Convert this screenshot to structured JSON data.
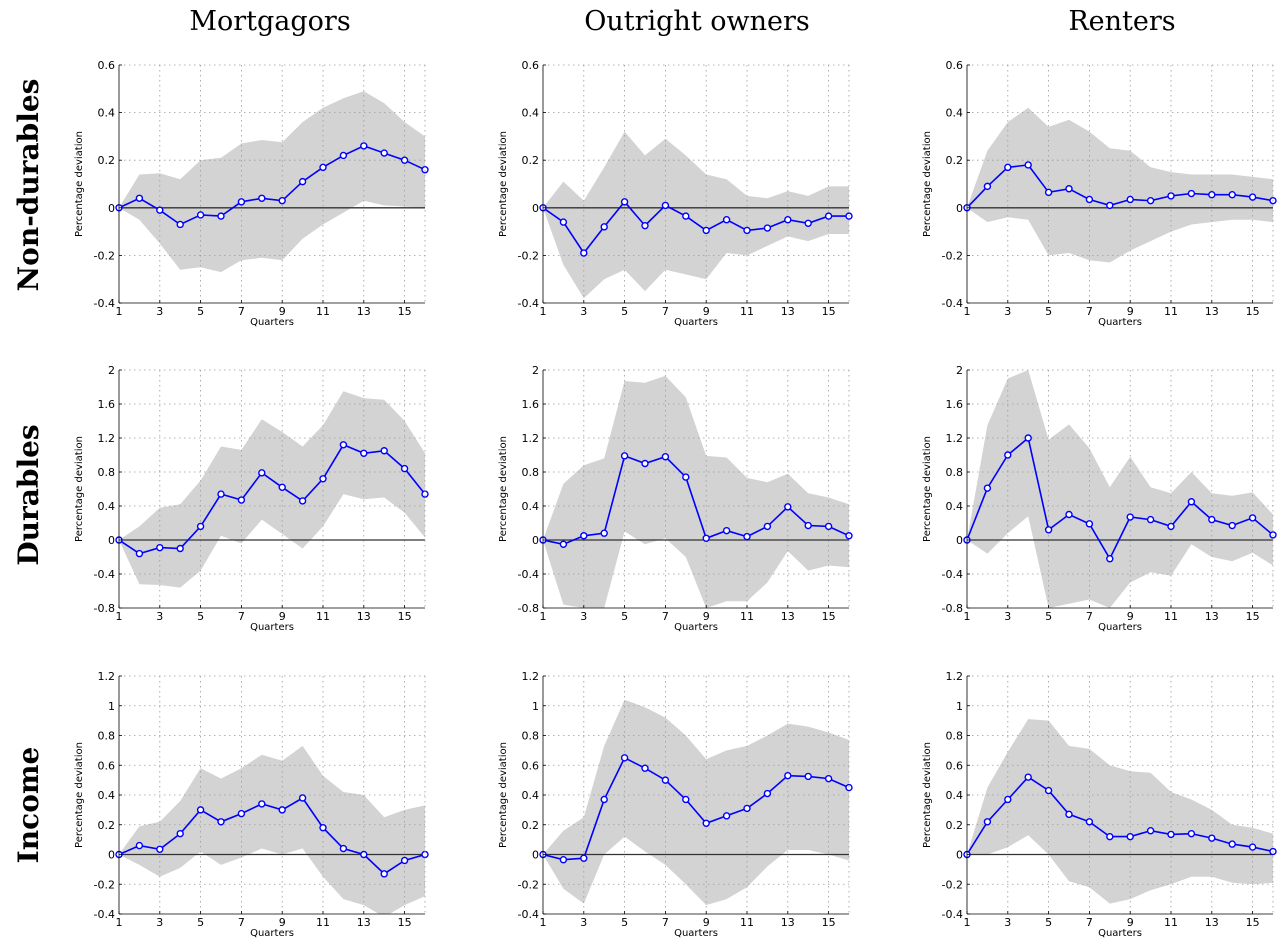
{
  "figure": {
    "col_titles": [
      "Mortgagors",
      "Outright owners",
      "Renters"
    ],
    "row_titles": [
      "Non-durables",
      "Durables",
      "Income"
    ]
  },
  "style": {
    "line_color": "#0000ff",
    "band_color": "#d3d3d3",
    "zero_line_color": "#333333"
  },
  "chart_data": [
    {
      "type": "line",
      "row": 0,
      "col": 0,
      "xlabel": "Quarters",
      "ylabel": "Percentage deviation",
      "xlim": [
        1,
        16
      ],
      "ylim": [
        -0.4,
        0.6
      ],
      "xticks": [
        1,
        3,
        5,
        7,
        9,
        11,
        13,
        15
      ],
      "yticks": [
        -0.4,
        -0.2,
        0,
        0.2,
        0.4,
        0.6
      ],
      "grid": true,
      "x": [
        1,
        2,
        3,
        4,
        5,
        6,
        7,
        8,
        9,
        10,
        11,
        12,
        13,
        14,
        15,
        16
      ],
      "series": [
        {
          "values": [
            0,
            0.04,
            -0.01,
            -0.07,
            -0.03,
            -0.035,
            0.025,
            0.04,
            0.03,
            0.11,
            0.17,
            0.22,
            0.26,
            0.23,
            0.2,
            0.16
          ]
        }
      ],
      "band_lower": [
        0,
        -0.05,
        -0.15,
        -0.26,
        -0.25,
        -0.27,
        -0.22,
        -0.21,
        -0.22,
        -0.13,
        -0.07,
        -0.02,
        0.03,
        0.01,
        0.005,
        0
      ],
      "band_upper": [
        0,
        0.14,
        0.145,
        0.12,
        0.2,
        0.21,
        0.27,
        0.285,
        0.275,
        0.36,
        0.42,
        0.46,
        0.49,
        0.44,
        0.36,
        0.3
      ]
    },
    {
      "type": "line",
      "row": 0,
      "col": 1,
      "xlabel": "Quarters",
      "ylabel": "Percentage deviation",
      "xlim": [
        1,
        16
      ],
      "ylim": [
        -0.4,
        0.6
      ],
      "xticks": [
        1,
        3,
        5,
        7,
        9,
        11,
        13,
        15
      ],
      "yticks": [
        -0.4,
        -0.2,
        0,
        0.2,
        0.4,
        0.6
      ],
      "grid": true,
      "x": [
        1,
        2,
        3,
        4,
        5,
        6,
        7,
        8,
        9,
        10,
        11,
        12,
        13,
        14,
        15,
        16
      ],
      "series": [
        {
          "values": [
            0,
            -0.06,
            -0.19,
            -0.08,
            0.025,
            -0.075,
            0.01,
            -0.035,
            -0.095,
            -0.05,
            -0.095,
            -0.085,
            -0.05,
            -0.065,
            -0.035,
            -0.035
          ]
        }
      ],
      "band_lower": [
        0,
        -0.24,
        -0.38,
        -0.3,
        -0.26,
        -0.35,
        -0.26,
        -0.28,
        -0.3,
        -0.19,
        -0.2,
        -0.16,
        -0.12,
        -0.14,
        -0.11,
        -0.11
      ],
      "band_upper": [
        0,
        0.11,
        0.03,
        0.17,
        0.32,
        0.22,
        0.29,
        0.22,
        0.14,
        0.12,
        0.05,
        0.04,
        0.07,
        0.05,
        0.09,
        0.09
      ]
    },
    {
      "type": "line",
      "row": 0,
      "col": 2,
      "xlabel": "Quarters",
      "ylabel": "Percentage deviation",
      "xlim": [
        1,
        16
      ],
      "ylim": [
        -0.4,
        0.6
      ],
      "xticks": [
        1,
        3,
        5,
        7,
        9,
        11,
        13,
        15
      ],
      "yticks": [
        -0.4,
        -0.2,
        0,
        0.2,
        0.4,
        0.6
      ],
      "grid": true,
      "x": [
        1,
        2,
        3,
        4,
        5,
        6,
        7,
        8,
        9,
        10,
        11,
        12,
        13,
        14,
        15,
        16
      ],
      "series": [
        {
          "values": [
            0,
            0.09,
            0.17,
            0.18,
            0.065,
            0.08,
            0.035,
            0.01,
            0.035,
            0.03,
            0.05,
            0.06,
            0.055,
            0.055,
            0.045,
            0.03
          ]
        }
      ],
      "band_lower": [
        0,
        -0.06,
        -0.04,
        -0.05,
        -0.2,
        -0.19,
        -0.22,
        -0.23,
        -0.18,
        -0.14,
        -0.1,
        -0.07,
        -0.06,
        -0.05,
        -0.05,
        -0.06
      ],
      "band_upper": [
        0,
        0.24,
        0.36,
        0.42,
        0.34,
        0.37,
        0.32,
        0.25,
        0.24,
        0.17,
        0.15,
        0.14,
        0.14,
        0.14,
        0.13,
        0.12
      ]
    },
    {
      "type": "line",
      "row": 1,
      "col": 0,
      "xlabel": "Quarters",
      "ylabel": "Percentage deviation",
      "xlim": [
        1,
        16
      ],
      "ylim": [
        -0.8,
        2
      ],
      "xticks": [
        1,
        3,
        5,
        7,
        9,
        11,
        13,
        15
      ],
      "yticks": [
        -0.8,
        -0.4,
        0,
        0.4,
        0.8,
        1.2,
        1.6,
        2
      ],
      "grid": true,
      "x": [
        1,
        2,
        3,
        4,
        5,
        6,
        7,
        8,
        9,
        10,
        11,
        12,
        13,
        14,
        15,
        16
      ],
      "series": [
        {
          "values": [
            0,
            -0.16,
            -0.09,
            -0.1,
            0.16,
            0.54,
            0.47,
            0.79,
            0.62,
            0.46,
            0.72,
            1.12,
            1.02,
            1.05,
            0.84,
            0.54
          ]
        }
      ],
      "band_lower": [
        0,
        -0.52,
        -0.53,
        -0.56,
        -0.36,
        0.05,
        -0.04,
        0.24,
        0.07,
        -0.1,
        0.16,
        0.54,
        0.48,
        0.5,
        0.32,
        0.03
      ],
      "band_upper": [
        0,
        0.16,
        0.38,
        0.42,
        0.7,
        1.1,
        1.06,
        1.42,
        1.27,
        1.1,
        1.35,
        1.75,
        1.67,
        1.65,
        1.4,
        1.02
      ]
    },
    {
      "type": "line",
      "row": 1,
      "col": 1,
      "xlabel": "Quarters",
      "ylabel": "Percentage deviation",
      "xlim": [
        1,
        16
      ],
      "ylim": [
        -0.8,
        2
      ],
      "xticks": [
        1,
        3,
        5,
        7,
        9,
        11,
        13,
        15
      ],
      "yticks": [
        -0.8,
        -0.4,
        0,
        0.4,
        0.8,
        1.2,
        1.6,
        2
      ],
      "grid": true,
      "x": [
        1,
        2,
        3,
        4,
        5,
        6,
        7,
        8,
        9,
        10,
        11,
        12,
        13,
        14,
        15,
        16
      ],
      "series": [
        {
          "values": [
            0,
            -0.05,
            0.05,
            0.08,
            0.99,
            0.9,
            0.98,
            0.74,
            0.02,
            0.11,
            0.04,
            0.16,
            0.39,
            0.17,
            0.16,
            0.05
          ]
        }
      ],
      "band_lower": [
        0,
        -0.76,
        -0.8,
        -0.8,
        0.1,
        -0.05,
        0.02,
        -0.2,
        -0.8,
        -0.72,
        -0.72,
        -0.5,
        -0.13,
        -0.36,
        -0.3,
        -0.32
      ],
      "band_upper": [
        0,
        0.66,
        0.88,
        0.96,
        1.87,
        1.85,
        1.93,
        1.68,
        0.99,
        0.97,
        0.73,
        0.68,
        0.78,
        0.55,
        0.5,
        0.42
      ]
    },
    {
      "type": "line",
      "row": 1,
      "col": 2,
      "xlabel": "Quarters",
      "ylabel": "Percentage deviation",
      "xlim": [
        1,
        16
      ],
      "ylim": [
        -0.8,
        2
      ],
      "xticks": [
        1,
        3,
        5,
        7,
        9,
        11,
        13,
        15
      ],
      "yticks": [
        -0.8,
        -0.4,
        0,
        0.4,
        0.8,
        1.2,
        1.6,
        2
      ],
      "grid": true,
      "x": [
        1,
        2,
        3,
        4,
        5,
        6,
        7,
        8,
        9,
        10,
        11,
        12,
        13,
        14,
        15,
        16
      ],
      "series": [
        {
          "values": [
            0,
            0.61,
            1.0,
            1.2,
            0.12,
            0.3,
            0.19,
            -0.22,
            0.27,
            0.24,
            0.16,
            0.45,
            0.24,
            0.17,
            0.26,
            0.06
          ]
        }
      ],
      "band_lower": [
        0,
        -0.16,
        0.08,
        0.28,
        -0.8,
        -0.75,
        -0.7,
        -0.8,
        -0.5,
        -0.38,
        -0.42,
        -0.05,
        -0.2,
        -0.25,
        -0.15,
        -0.3
      ],
      "band_upper": [
        0,
        1.35,
        1.9,
        2.0,
        1.18,
        1.36,
        1.08,
        0.62,
        0.98,
        0.62,
        0.55,
        0.8,
        0.55,
        0.52,
        0.56,
        0.3
      ]
    },
    {
      "type": "line",
      "row": 2,
      "col": 0,
      "xlabel": "Quarters",
      "ylabel": "Percentage deviation",
      "xlim": [
        1,
        16
      ],
      "ylim": [
        -0.4,
        1.2
      ],
      "xticks": [
        1,
        3,
        5,
        7,
        9,
        11,
        13,
        15
      ],
      "yticks": [
        -0.4,
        -0.2,
        0,
        0.2,
        0.4,
        0.6,
        0.8,
        1,
        1.2
      ],
      "grid": true,
      "x": [
        1,
        2,
        3,
        4,
        5,
        6,
        7,
        8,
        9,
        10,
        11,
        12,
        13,
        14,
        15,
        16
      ],
      "series": [
        {
          "values": [
            0,
            0.06,
            0.035,
            0.14,
            0.3,
            0.22,
            0.275,
            0.34,
            0.3,
            0.38,
            0.18,
            0.04,
            0.0,
            -0.13,
            -0.04,
            0.0
          ]
        }
      ],
      "band_lower": [
        0,
        -0.07,
        -0.15,
        -0.09,
        0.02,
        -0.07,
        -0.02,
        0.04,
        0.0,
        0.04,
        -0.15,
        -0.3,
        -0.34,
        -0.42,
        -0.34,
        -0.28
      ],
      "band_upper": [
        0,
        0.19,
        0.22,
        0.36,
        0.58,
        0.51,
        0.58,
        0.67,
        0.63,
        0.73,
        0.53,
        0.42,
        0.4,
        0.25,
        0.3,
        0.33
      ]
    },
    {
      "type": "line",
      "row": 2,
      "col": 1,
      "xlabel": "Quarters",
      "ylabel": "Percentage deviation",
      "xlim": [
        1,
        16
      ],
      "ylim": [
        -0.4,
        1.2
      ],
      "xticks": [
        1,
        3,
        5,
        7,
        9,
        11,
        13,
        15
      ],
      "yticks": [
        -0.4,
        -0.2,
        0,
        0.2,
        0.4,
        0.6,
        0.8,
        1,
        1.2
      ],
      "grid": true,
      "x": [
        1,
        2,
        3,
        4,
        5,
        6,
        7,
        8,
        9,
        10,
        11,
        12,
        13,
        14,
        15,
        16
      ],
      "series": [
        {
          "values": [
            0,
            -0.035,
            -0.025,
            0.37,
            0.65,
            0.58,
            0.5,
            0.37,
            0.21,
            0.26,
            0.31,
            0.41,
            0.53,
            0.525,
            0.51,
            0.45
          ]
        }
      ],
      "band_lower": [
        0,
        -0.23,
        -0.33,
        0.0,
        0.12,
        0.02,
        -0.07,
        -0.2,
        -0.34,
        -0.3,
        -0.22,
        -0.08,
        0.03,
        0.03,
        0.0,
        -0.04
      ],
      "band_upper": [
        0,
        0.16,
        0.25,
        0.73,
        1.04,
        0.99,
        0.92,
        0.8,
        0.64,
        0.7,
        0.73,
        0.8,
        0.88,
        0.86,
        0.82,
        0.77
      ]
    },
    {
      "type": "line",
      "row": 2,
      "col": 2,
      "xlabel": "Quarters",
      "ylabel": "Percentage deviation",
      "xlim": [
        1,
        16
      ],
      "ylim": [
        -0.4,
        1.2
      ],
      "xticks": [
        1,
        3,
        5,
        7,
        9,
        11,
        13,
        15
      ],
      "yticks": [
        -0.4,
        -0.2,
        0,
        0.2,
        0.4,
        0.6,
        0.8,
        1,
        1.2
      ],
      "grid": true,
      "x": [
        1,
        2,
        3,
        4,
        5,
        6,
        7,
        8,
        9,
        10,
        11,
        12,
        13,
        14,
        15,
        16
      ],
      "series": [
        {
          "values": [
            0,
            0.22,
            0.37,
            0.52,
            0.43,
            0.27,
            0.22,
            0.12,
            0.12,
            0.16,
            0.135,
            0.14,
            0.11,
            0.07,
            0.05,
            0.02
          ]
        }
      ],
      "band_lower": [
        0,
        0.0,
        0.05,
        0.13,
        0.0,
        -0.18,
        -0.22,
        -0.33,
        -0.3,
        -0.24,
        -0.2,
        -0.15,
        -0.15,
        -0.19,
        -0.2,
        -0.19
      ],
      "band_upper": [
        0,
        0.45,
        0.69,
        0.91,
        0.9,
        0.73,
        0.71,
        0.6,
        0.56,
        0.55,
        0.42,
        0.37,
        0.3,
        0.2,
        0.18,
        0.14
      ]
    }
  ]
}
